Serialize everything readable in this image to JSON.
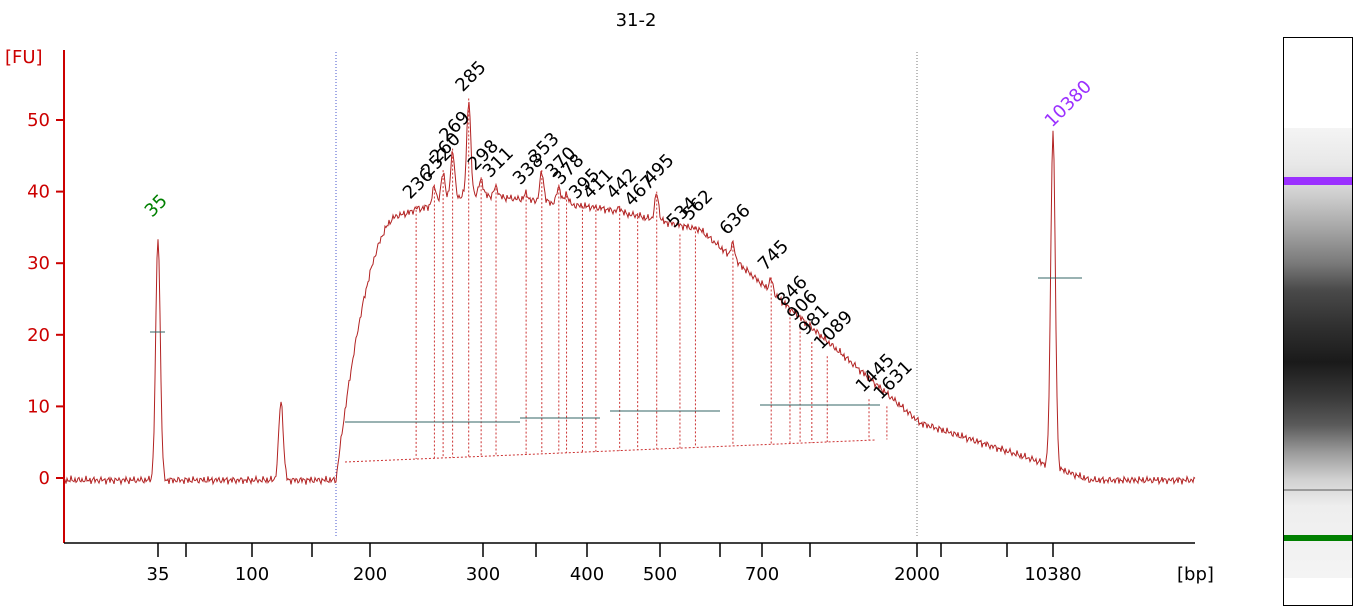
{
  "chart_data": {
    "type": "line",
    "title": "31-2",
    "ylabel": "[FU]",
    "xlabel": "[bp]",
    "ylim": [
      -9,
      60
    ],
    "yticks": [
      0,
      10,
      20,
      30,
      40,
      50
    ],
    "x_tick_labels": [
      "35",
      "100",
      "200",
      "300",
      "400",
      "500",
      "700",
      "2000",
      "10380"
    ],
    "x_scale": "non-linear (electropherogram)",
    "markers": {
      "lower": {
        "label": "35",
        "color": "#008000"
      },
      "upper": {
        "label": "10380",
        "color": "#9b30ff"
      }
    },
    "line_color": "#b22222",
    "series": [
      {
        "values": [
          [
            35,
            34
          ],
          [
            116,
            11
          ],
          [
            236,
            38
          ],
          [
            252,
            41
          ],
          [
            260,
            43
          ],
          [
            269,
            46
          ],
          [
            285,
            53
          ],
          [
            298,
            42
          ],
          [
            311,
            41
          ],
          [
            338,
            40
          ],
          [
            353,
            43
          ],
          [
            370,
            41
          ],
          [
            378,
            40
          ],
          [
            395,
            38
          ],
          [
            411,
            38
          ],
          [
            442,
            38
          ],
          [
            467,
            37
          ],
          [
            495,
            40
          ],
          [
            534,
            34
          ],
          [
            562,
            35
          ],
          [
            636,
            33
          ],
          [
            745,
            28
          ],
          [
            846,
            23
          ],
          [
            906,
            21
          ],
          [
            981,
            19
          ],
          [
            1089,
            17
          ],
          [
            1445,
            11
          ],
          [
            1631,
            10
          ],
          [
            10380,
            49
          ]
        ]
      }
    ],
    "peak_labels": [
      "236",
      "252",
      "260",
      "269",
      "285",
      "298",
      "311",
      "338",
      "353",
      "370",
      "378",
      "395",
      "411",
      "442",
      "467",
      "495",
      "534",
      "562",
      "636",
      "745",
      "846",
      "906",
      "981",
      "1089",
      "1445",
      "1631"
    ]
  },
  "gel": {
    "upper_marker_color": "#9b30ff",
    "lower_marker_color": "#008000"
  }
}
